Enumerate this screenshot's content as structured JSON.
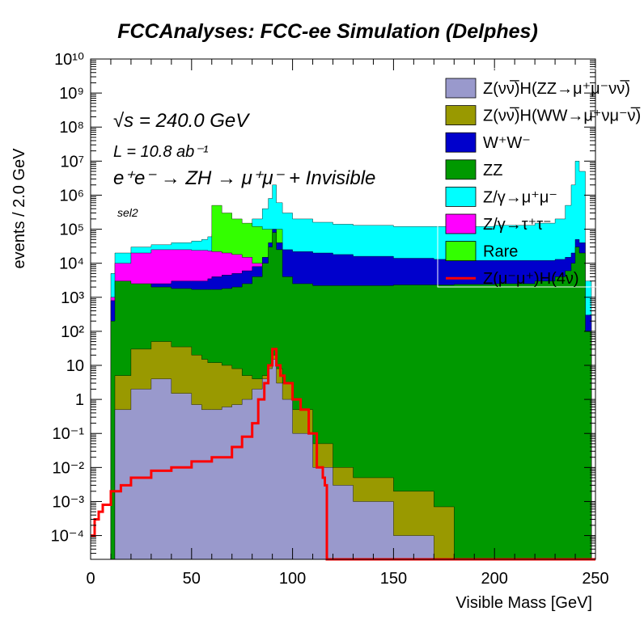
{
  "chart_data": {
    "type": "area",
    "title": "FCCAnalyses: FCC-ee Simulation (Delphes)",
    "xlabel": "Visible Mass [GeV]",
    "ylabel": "events / 2.0 GeV",
    "xlim": [
      0,
      250
    ],
    "ylim": [
      2e-05,
      10000000000
    ],
    "log_y": true,
    "grid": false,
    "legend_position": "top-right",
    "x_ticks": [
      "0",
      "50",
      "100",
      "150",
      "200",
      "250"
    ],
    "y_ticks": [
      "10⁻⁴",
      "10⁻³",
      "10⁻²",
      "10⁻¹",
      "1",
      "10",
      "10²",
      "10³",
      "10⁴",
      "10⁵",
      "10⁶",
      "10⁷",
      "10⁸",
      "10⁹",
      "10¹⁰"
    ],
    "y_tick_values": [
      0.0001,
      0.001,
      0.01,
      0.1,
      1,
      10,
      100,
      1000,
      10000,
      100000,
      1000000,
      10000000,
      100000000,
      1000000000,
      10000000000
    ],
    "annotations": {
      "sqrt_s": "√s = 240.0 GeV",
      "lumi": "L = 10.8 ab⁻¹",
      "process": "e⁺e⁻ → ZH → μ⁺μ⁻ + Invisible",
      "selection": "sel2"
    },
    "stack_cumulative_x": [
      0,
      5,
      10,
      12,
      20,
      30,
      40,
      50,
      55,
      58,
      60,
      65,
      70,
      75,
      80,
      85,
      88,
      90,
      92,
      95,
      100,
      110,
      120,
      130,
      150,
      170,
      180,
      200,
      220,
      230,
      235,
      238,
      240,
      242,
      245,
      248
    ],
    "series": [
      {
        "name": "Z(νν̅)H(ZZ→μ⁺μ⁻νν̅)",
        "color": "#9999cc",
        "values": [
          2e-05,
          2e-05,
          2e-05,
          0.5,
          2,
          4,
          1.5,
          0.7,
          0.5,
          0.5,
          0.5,
          0.6,
          0.7,
          1,
          2,
          4,
          8,
          15,
          3,
          1,
          0.1,
          0.01,
          0.003,
          0.001,
          0.0001,
          2e-05,
          2e-05,
          2e-05,
          2e-05,
          2e-05,
          2e-05,
          2e-05,
          2e-05,
          2e-05,
          2e-05,
          2e-05
        ]
      },
      {
        "name": "Z(νν̅)H(WW→μ⁺νμ⁻ν̅)",
        "color": "#999900",
        "values": [
          2e-05,
          2e-05,
          2e-05,
          5,
          30,
          50,
          35,
          20,
          15,
          12,
          12,
          10,
          8,
          5,
          4,
          5,
          10,
          20,
          8,
          3,
          0.5,
          0.05,
          0.01,
          0.005,
          0.002,
          0.0007,
          2e-05,
          2e-05,
          2e-05,
          2e-05,
          2e-05,
          2e-05,
          2e-05,
          2e-05,
          2e-05,
          2e-05
        ]
      },
      {
        "name": "W⁺W⁻",
        "color": "#0000cc",
        "values": [
          2e-05,
          2e-05,
          800,
          1000,
          2000,
          2500,
          3000,
          3000,
          3000,
          3500,
          4000,
          4500,
          5000,
          6000,
          8000,
          15000,
          40000,
          100000,
          40000,
          25000,
          22000,
          20000,
          18000,
          16000,
          14000,
          13000,
          12000,
          12000,
          12000,
          13000,
          15000,
          20000,
          50000,
          40000,
          300,
          2e-05
        ]
      },
      {
        "name": "ZZ",
        "color": "#009900",
        "values": [
          2e-05,
          2e-05,
          200,
          3000,
          2500,
          2000,
          1800,
          1700,
          1700,
          1700,
          1700,
          1800,
          2000,
          2500,
          4000,
          10000,
          30000,
          80000,
          25000,
          4000,
          2500,
          2200,
          2200,
          2200,
          2300,
          2300,
          2400,
          2500,
          3000,
          4000,
          6000,
          10000,
          30000,
          20000,
          100,
          2e-05
        ]
      },
      {
        "name": "Z/γ→μ⁺μ⁻",
        "color": "#00ffff",
        "values": [
          2e-05,
          2e-05,
          5000,
          20000,
          30000,
          35000,
          40000,
          45000,
          50000,
          60000,
          70000,
          90000,
          100000,
          120000,
          200000,
          400000,
          800000,
          2000000,
          600000,
          300000,
          200000,
          160000,
          140000,
          130000,
          120000,
          120000,
          120000,
          130000,
          150000,
          200000,
          500000,
          2000000,
          10000000,
          5000000,
          3000,
          2e-05
        ]
      },
      {
        "name": "Z/γ→τ⁺τ⁻",
        "color": "#ff00ff",
        "values": [
          2e-05,
          2e-05,
          1000,
          10000,
          20000,
          25000,
          25000,
          24000,
          24000,
          23000,
          22000,
          20000,
          18000,
          15000,
          10000,
          8000,
          10000,
          15000,
          8000,
          6000,
          5000,
          4000,
          3500,
          3000,
          2500,
          2000,
          1800,
          1500,
          1200,
          1000,
          800,
          500,
          300,
          200,
          100,
          2e-05
        ]
      },
      {
        "name": "Rare",
        "color": "#33ff00",
        "values": [
          2e-05,
          2e-05,
          2e-05,
          2e-05,
          2e-05,
          2e-05,
          2e-05,
          2e-05,
          2e-05,
          2e-05,
          500000,
          300000,
          200000,
          150000,
          120000,
          100000,
          100000,
          100000,
          100000,
          2e-05,
          2e-05,
          2e-05,
          2e-05,
          2e-05,
          2e-05,
          2e-05,
          2e-05,
          2e-05,
          2e-05,
          2e-05,
          2e-05,
          2e-05,
          2e-05,
          2e-05,
          2e-05,
          2e-05
        ]
      }
    ],
    "signal": {
      "name": "Z(μ⁻μ⁺)H(4ν)",
      "color": "#ff0000",
      "x": [
        0,
        2,
        4,
        6,
        10,
        15,
        20,
        30,
        40,
        50,
        60,
        70,
        75,
        80,
        83,
        86,
        88,
        90,
        92,
        94,
        96,
        100,
        104,
        108,
        112,
        115,
        116,
        117
      ],
      "values": [
        0.0001,
        0.0003,
        0.0005,
        0.0008,
        0.002,
        0.003,
        0.005,
        0.008,
        0.01,
        0.015,
        0.02,
        0.04,
        0.08,
        0.2,
        1,
        3,
        10,
        30,
        10,
        5,
        3,
        1,
        0.5,
        0.1,
        0.01,
        0.005,
        0.003,
        2e-05
      ]
    }
  }
}
